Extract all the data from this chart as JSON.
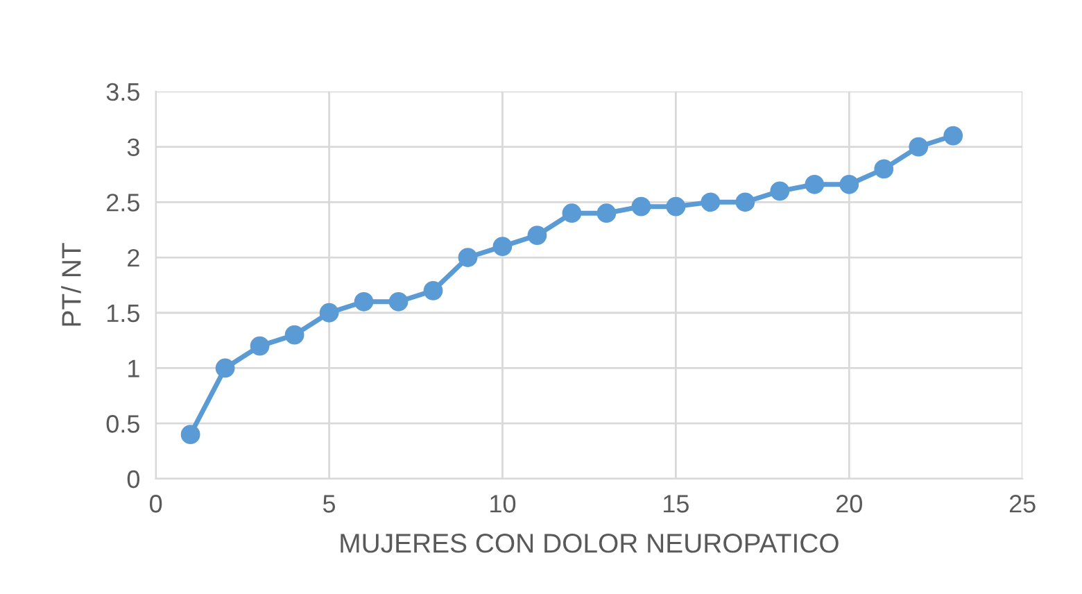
{
  "chart_data": {
    "type": "line",
    "xlabel": "MUJERES CON DOLOR NEUROPATICO",
    "ylabel": "PT/ NT",
    "x": [
      1,
      2,
      3,
      4,
      5,
      6,
      7,
      8,
      9,
      10,
      11,
      12,
      13,
      14,
      15,
      16,
      17,
      18,
      19,
      20,
      21,
      22,
      23
    ],
    "series": [
      {
        "color": "#5b9bd5",
        "values": [
          0.4,
          1.0,
          1.2,
          1.3,
          1.5,
          1.6,
          1.6,
          1.7,
          2.0,
          2.1,
          2.2,
          2.4,
          2.4,
          2.46,
          2.46,
          2.5,
          2.5,
          2.6,
          2.66,
          2.66,
          2.8,
          3.0,
          3.1
        ]
      }
    ],
    "xlim": [
      0,
      25
    ],
    "xticks": [
      0,
      5,
      10,
      15,
      20,
      25
    ],
    "ylim": [
      0,
      3.5
    ],
    "yticks": [
      0,
      {
        "value": 0.5,
        "label": "0.5"
      },
      1,
      {
        "value": 1.5,
        "label": "1.5"
      },
      2,
      {
        "value": 2.5,
        "label": "2.5"
      },
      3,
      {
        "value": 3.5,
        "label": "3.5"
      }
    ],
    "grid": true,
    "marker": "circle",
    "line_style": "solid",
    "legend": false
  }
}
